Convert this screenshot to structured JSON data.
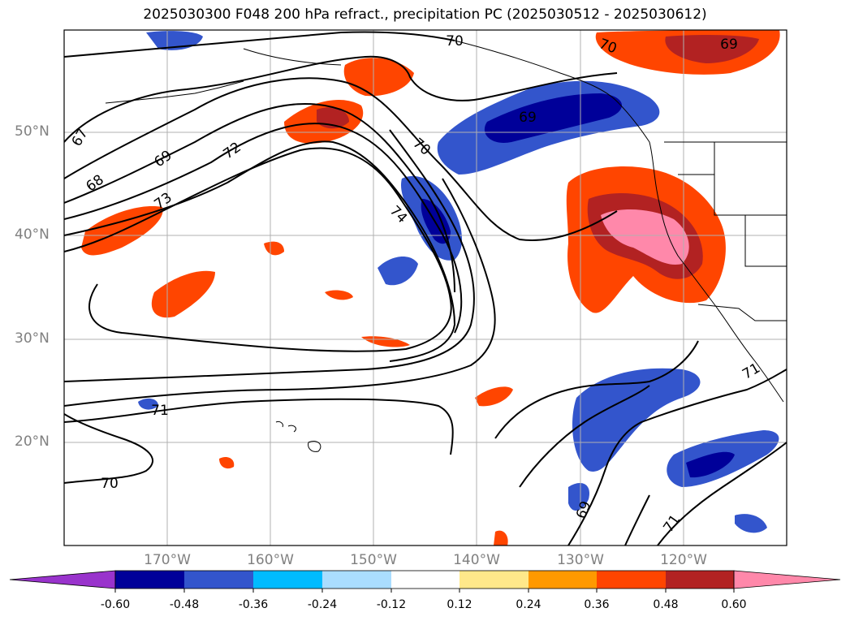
{
  "title": "2025030300 F048 200 hPa refract., precipitation PC (2025030512 - 2025030612)",
  "map": {
    "lat_labels": [
      "50°N",
      "40°N",
      "30°N",
      "20°N"
    ],
    "lon_labels": [
      "170°W",
      "160°W",
      "150°W",
      "140°W",
      "130°W",
      "120°W"
    ],
    "contour_labels": [
      "70",
      "70",
      "69",
      "67",
      "69",
      "72",
      "68",
      "73",
      "70",
      "74",
      "71",
      "70",
      "69",
      "71",
      "71",
      "69"
    ],
    "field_description_tags": [
      "refractivity-contours",
      "precipitation-pc-fill"
    ]
  },
  "colorbar": {
    "tick_labels": [
      "-0.60",
      "-0.48",
      "-0.36",
      "-0.24",
      "-0.12",
      "0.12",
      "0.24",
      "0.36",
      "0.48",
      "0.60"
    ],
    "colors": [
      "#9933cc",
      "#000099",
      "#3355cc",
      "#00bbff",
      "#aaddff",
      "#ffffff",
      "#ffe88a",
      "#ff9900",
      "#ff4500",
      "#b22222",
      "#ff88aa"
    ]
  }
}
